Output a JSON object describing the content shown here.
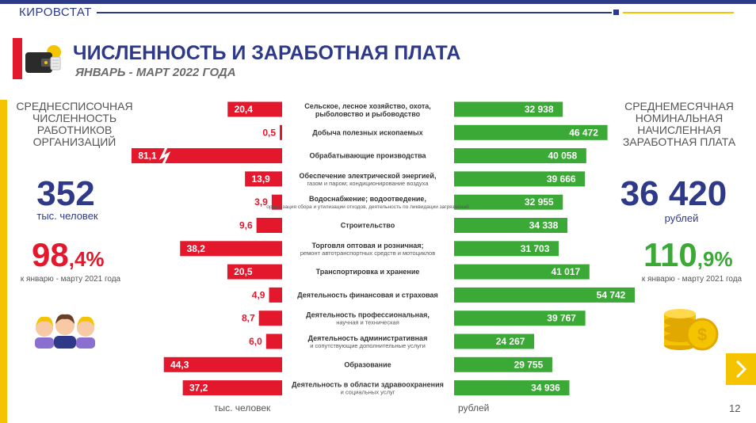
{
  "header": {
    "brand": "КИРОВСТАТ",
    "title": "ЧИСЛЕННОСТЬ И ЗАРАБОТНАЯ ПЛАТА",
    "subtitle": "ЯНВАРЬ - МАРТ 2022 ГОДА"
  },
  "left_panel": {
    "heading": "СРЕДНЕСПИСОЧНАЯ ЧИСЛЕННОСТЬ РАБОТНИКОВ ОРГАНИЗАЦИЙ",
    "big_value": "352",
    "big_unit": "тыс. человек",
    "pct_int": "98",
    "pct_dec": ",4%",
    "comparison": "к январю - марту 2021 года"
  },
  "right_panel": {
    "heading": "СРЕДНЕМЕСЯЧНАЯ НОМИНАЛЬНАЯ НАЧИСЛЕННАЯ ЗАРАБОТНАЯ ПЛАТА",
    "big_value": "36 420",
    "big_unit": "рублей",
    "pct_int": "110",
    "pct_dec": ",9%",
    "comparison": "к январю - марту 2021 года"
  },
  "footer": {
    "left_unit": "тыс. человек",
    "right_unit": "рублей",
    "page": "12"
  },
  "colors": {
    "navy": "#2e3a87",
    "red": "#e3182d",
    "green": "#3aa935",
    "yellow": "#f5c400"
  },
  "icons": [
    "wallet-icon",
    "people-icon",
    "coins-icon",
    "chevron-right-icon"
  ],
  "chart_data": {
    "type": "bar",
    "orientation": "horizontal",
    "categories": [
      {
        "main": "Сельское, лесное хозяйство, охота, рыболовство и рыбоводство",
        "sub": ""
      },
      {
        "main": "Добыча полезных ископаемых",
        "sub": ""
      },
      {
        "main": "Обрабатывающие производства",
        "sub": ""
      },
      {
        "main": "Обеспечение электрической энергией,",
        "sub": "газом и паром; кондиционирование воздуха"
      },
      {
        "main": "Водоснабжение; водоотведение,",
        "sub": "организация сбора и утилизации отходов, деятельность по ликвидации загрязнений"
      },
      {
        "main": "Строительство",
        "sub": ""
      },
      {
        "main": "Торговля оптовая и розничная;",
        "sub": "ремонт автотранспортных средств и мотоциклов"
      },
      {
        "main": "Транспортировка и хранение",
        "sub": ""
      },
      {
        "main": "Деятельность финансовая и страховая",
        "sub": ""
      },
      {
        "main": "Деятельность профессиональная,",
        "sub": "научная и техническая"
      },
      {
        "main": "Деятельность административная",
        "sub": "и сопутствующие дополнительные услуги"
      },
      {
        "main": "Образование",
        "sub": ""
      },
      {
        "main": "Деятельность в области здравоохранения",
        "sub": "и социальных услуг"
      }
    ],
    "series": [
      {
        "name": "тыс. человек",
        "values": [
          20.4,
          0.5,
          81.1,
          13.9,
          3.9,
          9.6,
          38.2,
          20.5,
          4.9,
          8.7,
          6.0,
          44.3,
          37.2
        ],
        "labels": [
          "20,4",
          "0,5",
          "81,1",
          "13,9",
          "3,9",
          "9,6",
          "38,2",
          "20,5",
          "4,9",
          "8,7",
          "6,0",
          "44,3",
          "37,2"
        ],
        "truncated_index": 2
      },
      {
        "name": "рублей",
        "values": [
          32938,
          46472,
          40058,
          39666,
          32955,
          34338,
          31703,
          41017,
          54742,
          39767,
          24267,
          29755,
          34936
        ],
        "labels": [
          "32 938",
          "46 472",
          "40 058",
          "39 666",
          "32 955",
          "34 338",
          "31 703",
          "41 017",
          "54 742",
          "39 767",
          "24 267",
          "29 755",
          "34 936"
        ]
      }
    ]
  }
}
